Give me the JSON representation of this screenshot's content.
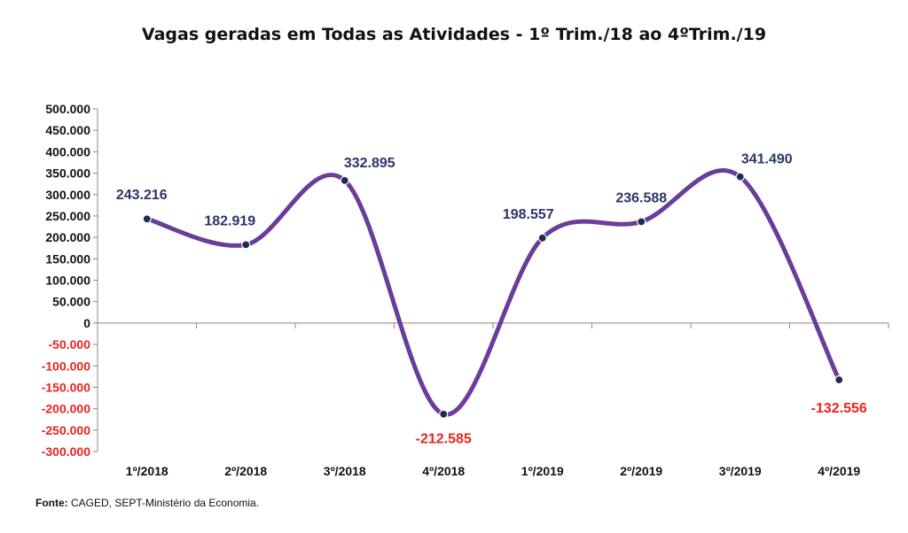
{
  "chart_data": {
    "type": "line",
    "title": "Vagas geradas em Todas as Atividades - 1º Trim./18 ao 4ºTrim./19",
    "categories": [
      "1º/2018",
      "2º/2018",
      "3º/2018",
      "4º/2018",
      "1º/2019",
      "2º/2019",
      "3º/2019",
      "4º/2019"
    ],
    "series": [
      {
        "values": [
          243216,
          182919,
          332895,
          -212585,
          198557,
          236588,
          341490,
          -132556
        ]
      }
    ],
    "data_labels": [
      "243.216",
      "182.919",
      "332.895",
      "-212.585",
      "198.557",
      "236.588",
      "341.490",
      "-132.556"
    ],
    "y_ticks": [
      500000,
      450000,
      400000,
      350000,
      300000,
      250000,
      200000,
      150000,
      100000,
      50000,
      0,
      -50000,
      -100000,
      -150000,
      -200000,
      -250000,
      -300000
    ],
    "y_tick_labels": [
      "500.000",
      "450.000",
      "400.000",
      "350.000",
      "300.000",
      "250.000",
      "200.000",
      "150.000",
      "100.000",
      "50.000",
      "0",
      "-50.000",
      "-100.000",
      "-150.000",
      "-200.000",
      "-250.000",
      "-300.000"
    ],
    "ylim": [
      -300000,
      500000
    ],
    "grid": false,
    "colors": {
      "line": "#6a3d9a",
      "marker": "#1f2d4d",
      "label": "#2b3566",
      "negative": "#e8251e"
    }
  },
  "source": {
    "label": "Fonte:",
    "text": " CAGED, SEPT-Ministério da Economia."
  }
}
